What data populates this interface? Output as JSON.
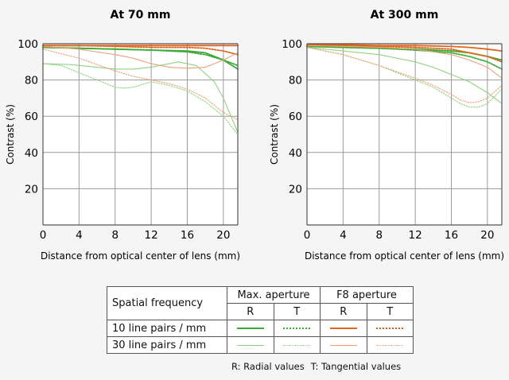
{
  "legend": {
    "header": "Spatial frequency",
    "groups": [
      "Max. aperture",
      "F8 aperture"
    ],
    "sub": [
      "R",
      "T",
      "R",
      "T"
    ],
    "rows": [
      "10 line pairs / mm",
      "30 line pairs / mm"
    ],
    "note_r": "R: Radial values",
    "note_t": "T: Tangential values"
  },
  "colors": {
    "max_10": "#3aaa35",
    "max_30": "#8ed47f",
    "f8_10": "#e0641e",
    "f8_30": "#eea27a"
  },
  "chart_data": [
    {
      "type": "line",
      "title": "At 70 mm",
      "xlabel": "Distance from optical center of lens (mm)",
      "ylabel": "Contrast (%)",
      "xlim": [
        0,
        21.6
      ],
      "ylim": [
        0,
        100
      ],
      "xticks": [
        0,
        4,
        8,
        12,
        16,
        20
      ],
      "yticks": [
        20,
        40,
        60,
        80,
        100
      ],
      "grid": true,
      "series": [
        {
          "name": "Max. aperture 10 line pairs / mm R",
          "color_key": "max_10",
          "style": "solid",
          "x": [
            0,
            4,
            8,
            12,
            16,
            18,
            20,
            21.6
          ],
          "y": [
            98,
            97.5,
            97,
            96.5,
            96,
            95,
            91,
            86
          ]
        },
        {
          "name": "Max. aperture 10 line pairs / mm T",
          "color_key": "max_10",
          "style": "dotted",
          "x": [
            0,
            4,
            8,
            12,
            16,
            18,
            20,
            21.6
          ],
          "y": [
            98,
            97.5,
            97,
            96.5,
            95.5,
            94,
            91,
            88
          ]
        },
        {
          "name": "F8 aperture 10 line pairs / mm R",
          "color_key": "f8_10",
          "style": "solid",
          "x": [
            0,
            4,
            8,
            12,
            16,
            20,
            21.6
          ],
          "y": [
            99,
            99,
            99,
            99,
            99,
            99,
            99
          ]
        },
        {
          "name": "F8 aperture 10 line pairs / mm T",
          "color_key": "f8_10",
          "style": "dotted",
          "x": [
            0,
            4,
            8,
            12,
            16,
            18,
            20,
            21.6
          ],
          "y": [
            99,
            99,
            98.5,
            98,
            98,
            97.5,
            96,
            94
          ]
        },
        {
          "name": "Max. aperture 30 line pairs / mm R",
          "color_key": "max_30",
          "style": "solid",
          "x": [
            0,
            3,
            6,
            8,
            10,
            12,
            14,
            15,
            17,
            19,
            20,
            21.6
          ],
          "y": [
            89,
            88.5,
            87,
            86,
            86,
            87,
            89,
            90,
            88,
            79,
            70,
            51
          ]
        },
        {
          "name": "Max. aperture 30 line pairs / mm T",
          "color_key": "max_30",
          "style": "dotted",
          "x": [
            0,
            2,
            5,
            8,
            9,
            10,
            12,
            14,
            16,
            18,
            20,
            21.6
          ],
          "y": [
            89,
            88,
            82,
            76,
            75.5,
            76,
            79,
            77,
            74,
            68,
            60,
            50
          ]
        },
        {
          "name": "F8 aperture 30 line pairs / mm R",
          "color_key": "f8_30",
          "style": "solid",
          "x": [
            0,
            4,
            8,
            10,
            12,
            14,
            16,
            18,
            20,
            21.6
          ],
          "y": [
            98.5,
            97,
            94,
            92,
            89,
            87,
            86.5,
            87,
            91,
            95
          ]
        },
        {
          "name": "F8 aperture 30 line pairs / mm T",
          "color_key": "f8_30",
          "style": "dotted",
          "x": [
            0,
            4,
            8,
            10,
            12,
            14,
            16,
            18,
            19,
            20,
            21.6
          ],
          "y": [
            97,
            92,
            85,
            82,
            80,
            78,
            75,
            70,
            66,
            62,
            58
          ]
        }
      ]
    },
    {
      "type": "line",
      "title": "At 300 mm",
      "xlabel": "Distance from optical center of lens (mm)",
      "ylabel": "Contrast (%)",
      "xlim": [
        0,
        21.6
      ],
      "ylim": [
        0,
        100
      ],
      "xticks": [
        0,
        4,
        8,
        12,
        16,
        20
      ],
      "yticks": [
        20,
        40,
        60,
        80,
        100
      ],
      "grid": true,
      "series": [
        {
          "name": "Max. aperture 10 line pairs / mm R",
          "color_key": "max_10",
          "style": "solid",
          "x": [
            0,
            4,
            8,
            12,
            16,
            18,
            20,
            21.6
          ],
          "y": [
            98.5,
            98,
            97.5,
            97,
            96,
            95,
            93,
            91
          ]
        },
        {
          "name": "Max. aperture 10 line pairs / mm T",
          "color_key": "max_10",
          "style": "dotted",
          "x": [
            0,
            4,
            8,
            12,
            16,
            18,
            20,
            21.6
          ],
          "y": [
            98.5,
            98,
            97.5,
            96.5,
            95,
            93,
            90,
            86
          ]
        },
        {
          "name": "F8 aperture 10 line pairs / mm R",
          "color_key": "f8_10",
          "style": "solid",
          "x": [
            0,
            4,
            8,
            12,
            16,
            18,
            20,
            21.6
          ],
          "y": [
            99.5,
            99.5,
            99,
            99,
            98.5,
            98,
            97,
            96
          ]
        },
        {
          "name": "F8 aperture 10 line pairs / mm T",
          "color_key": "f8_10",
          "style": "dotted",
          "x": [
            0,
            4,
            8,
            12,
            16,
            18,
            20,
            21.6
          ],
          "y": [
            99,
            99,
            98.5,
            98,
            97,
            95,
            93,
            90
          ]
        },
        {
          "name": "Max. aperture 30 line pairs / mm R",
          "color_key": "max_30",
          "style": "solid",
          "x": [
            0,
            4,
            8,
            12,
            14,
            16,
            18,
            20,
            21.6
          ],
          "y": [
            98,
            96,
            94,
            90,
            87,
            83,
            79,
            73,
            67
          ]
        },
        {
          "name": "Max. aperture 30 line pairs / mm T",
          "color_key": "max_30",
          "style": "dotted",
          "x": [
            0,
            4,
            8,
            10,
            12,
            14,
            16,
            17,
            18,
            19,
            20,
            21.6
          ],
          "y": [
            98,
            94,
            88,
            84,
            80,
            76,
            70,
            67,
            65,
            65,
            67,
            75
          ]
        },
        {
          "name": "F8 aperture 30 line pairs / mm R",
          "color_key": "f8_30",
          "style": "solid",
          "x": [
            0,
            4,
            8,
            12,
            16,
            18,
            20,
            21.6
          ],
          "y": [
            99,
            98.5,
            98,
            97,
            94,
            91,
            87,
            81
          ]
        },
        {
          "name": "F8 aperture 30 line pairs / mm T",
          "color_key": "f8_30",
          "style": "dotted",
          "x": [
            0,
            4,
            8,
            12,
            14,
            16,
            17,
            18,
            19,
            20,
            21.6
          ],
          "y": [
            98,
            94,
            88,
            81,
            77,
            72,
            69,
            67.5,
            68,
            70,
            77
          ]
        }
      ]
    }
  ]
}
